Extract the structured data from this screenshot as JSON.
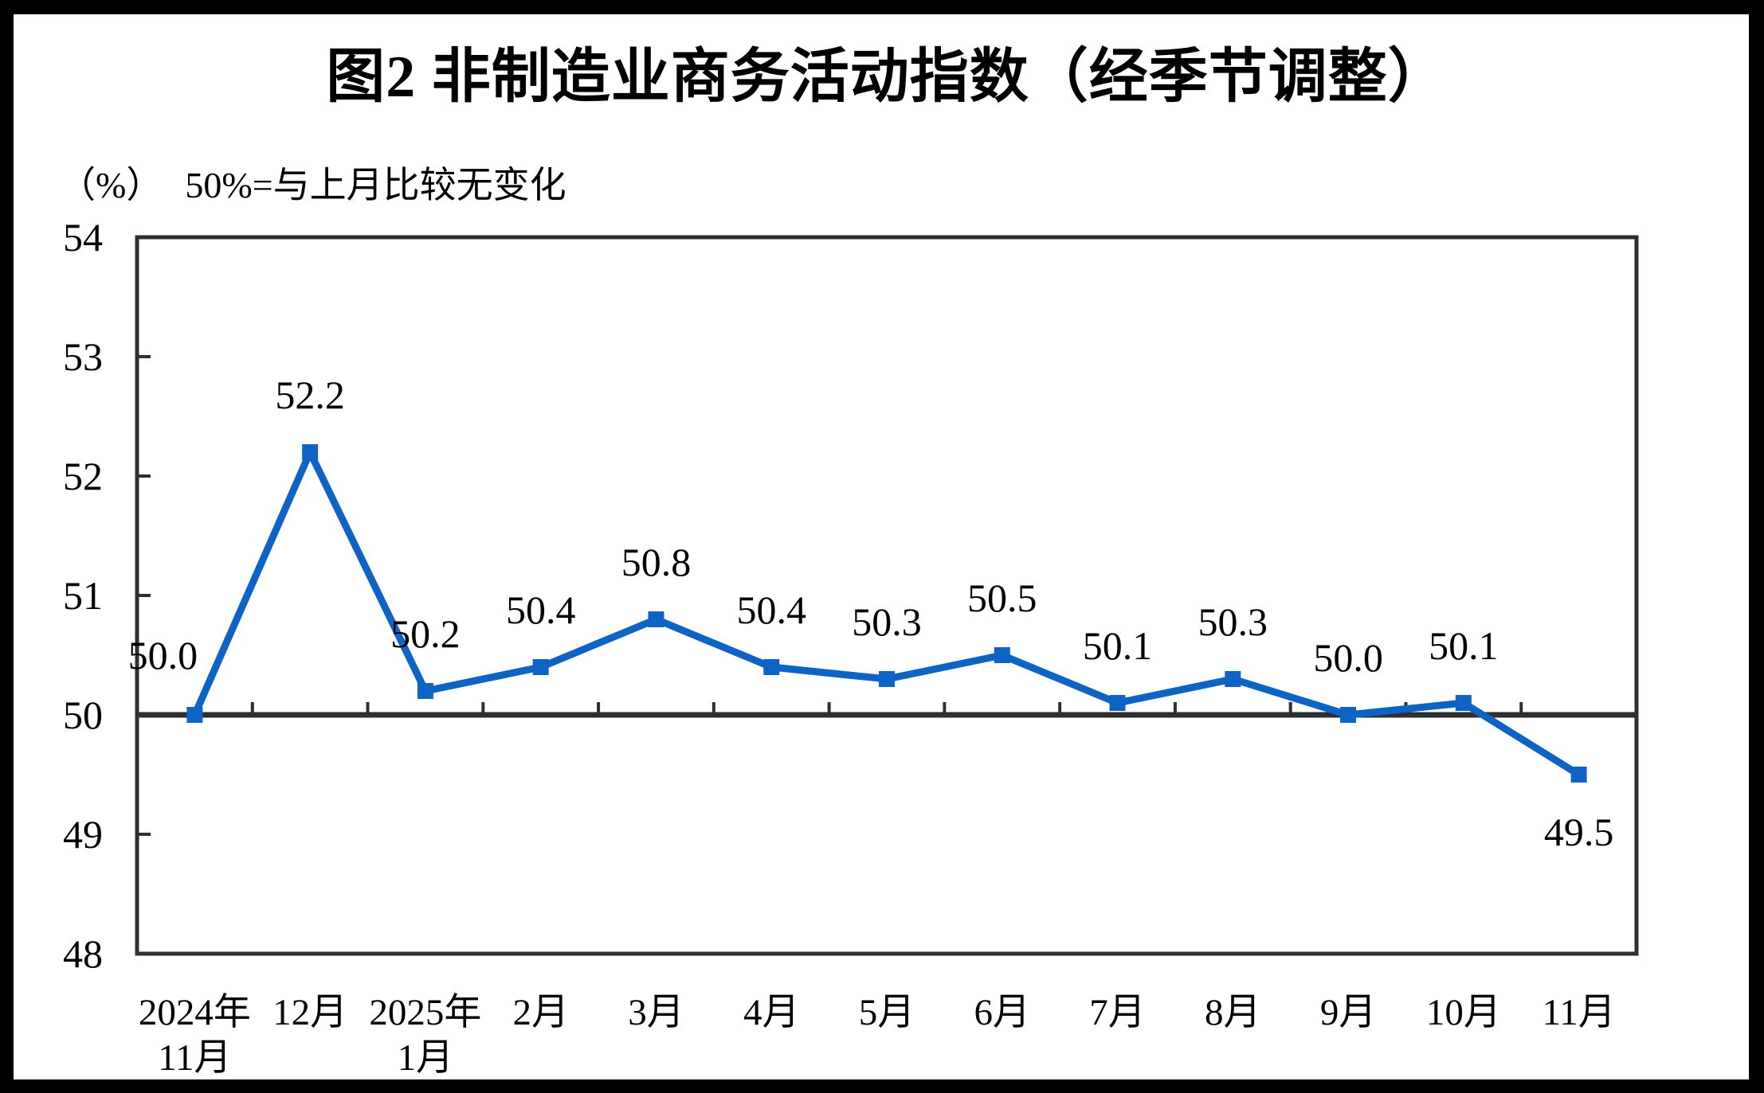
{
  "page": {
    "frame_color": "#000000",
    "background": "#ffffff"
  },
  "header": {
    "title": "图2 非制造业商务活动指数（经季节调整）",
    "unit_label": "（%）",
    "note": "50%=与上月比较无变化"
  },
  "chart_data": {
    "type": "line",
    "title": "图2 非制造业商务活动指数（经季节调整）",
    "ylabel": "（%）",
    "annotation": "50%=与上月比较无变化",
    "categories": [
      {
        "l1": "2024年",
        "l2": "11月"
      },
      {
        "l1": "12月",
        "l2": ""
      },
      {
        "l1": "2025年",
        "l2": "1月"
      },
      {
        "l1": "2月",
        "l2": ""
      },
      {
        "l1": "3月",
        "l2": ""
      },
      {
        "l1": "4月",
        "l2": ""
      },
      {
        "l1": "5月",
        "l2": ""
      },
      {
        "l1": "6月",
        "l2": ""
      },
      {
        "l1": "7月",
        "l2": ""
      },
      {
        "l1": "8月",
        "l2": ""
      },
      {
        "l1": "9月",
        "l2": ""
      },
      {
        "l1": "10月",
        "l2": ""
      },
      {
        "l1": "11月",
        "l2": ""
      }
    ],
    "series": [
      {
        "name": "非制造业商务活动指数",
        "color": "#0D64C5",
        "values": [
          50.0,
          52.2,
          50.2,
          50.4,
          50.8,
          50.4,
          50.3,
          50.5,
          50.1,
          50.3,
          50.0,
          50.1,
          49.5
        ],
        "data_labels": [
          "50.0",
          "52.2",
          "50.2",
          "50.4",
          "50.8",
          "50.4",
          "50.3",
          "50.5",
          "50.1",
          "50.3",
          "50.0",
          "50.1",
          "49.5"
        ]
      }
    ],
    "ylim": [
      48,
      54
    ],
    "yticks": [
      48,
      49,
      50,
      51,
      52,
      53,
      54
    ],
    "baseline_value": 50,
    "grid": false,
    "legend": "none",
    "axis_color": "#2f2f2f",
    "label_color": "#000000",
    "marker": "square",
    "label_layout_hints": {
      "0": {
        "dx": -40,
        "dy": -58
      },
      "12": {
        "dx": 0,
        "dy": 89
      }
    }
  }
}
